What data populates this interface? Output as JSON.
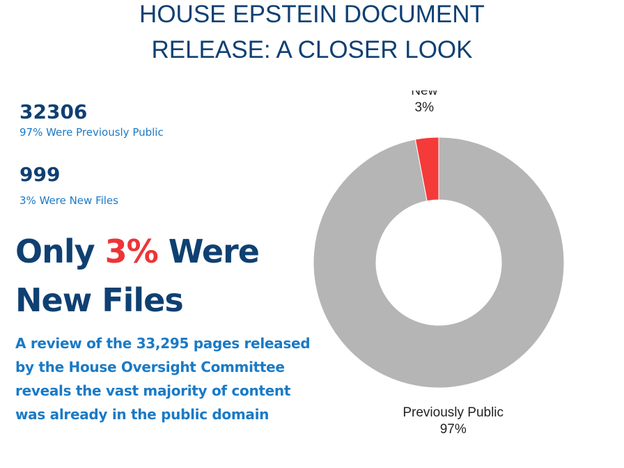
{
  "header": {
    "title_line1": "HOUSE EPSTEIN DOCUMENT",
    "title_line2": "RELEASE: A CLOSER LOOK"
  },
  "stats": [
    {
      "value": "32306",
      "label": "97% Were Previously Public"
    },
    {
      "value": "999",
      "label": "3% Were New Files"
    }
  ],
  "headline": {
    "part1": "Only ",
    "highlight": "3%",
    "part2": " Were New Files"
  },
  "description": "A review of the 33,295 pages released by the House Oversight Committee reveals the vast majority of content was already in the public domain",
  "colors": {
    "navy": "#0f4072",
    "blue": "#1a7ac6",
    "red": "#ee3437"
  },
  "chart_data": {
    "type": "pie",
    "variant": "donut",
    "slices": [
      {
        "label": "New",
        "percent_label": "3%",
        "value": 3,
        "color": "#f53a3a"
      },
      {
        "label": "Previously Public",
        "percent_label": "97%",
        "value": 97,
        "color": "#b5b5b5"
      }
    ],
    "title": "",
    "legend": "none"
  }
}
